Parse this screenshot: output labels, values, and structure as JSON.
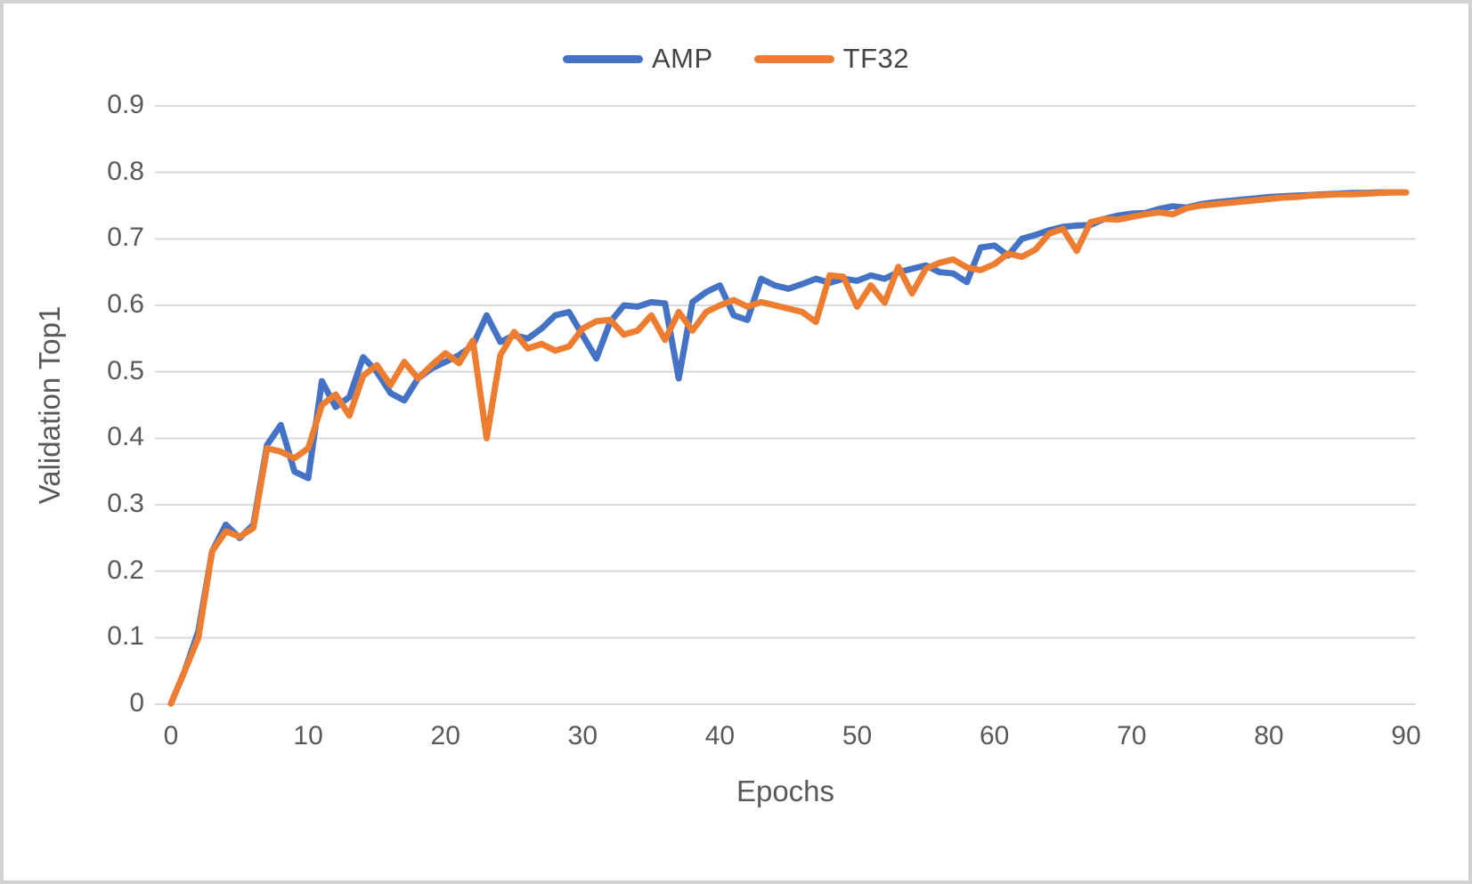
{
  "window": {
    "background": "#ffffff",
    "frame_border_color": "#d2d2d2"
  },
  "chart_data": {
    "type": "line",
    "title": "",
    "xlabel": "Epochs",
    "ylabel": "Validation Top1",
    "x": {
      "start": 0,
      "end": 90,
      "step": 1
    },
    "xlim": [
      0,
      90
    ],
    "ylim": [
      0,
      0.9
    ],
    "x_tick_labels": [
      "0",
      "10",
      "20",
      "30",
      "40",
      "50",
      "60",
      "70",
      "80",
      "90"
    ],
    "x_tick_values": [
      0,
      10,
      20,
      30,
      40,
      50,
      60,
      70,
      80,
      90
    ],
    "y_tick_labels": [
      "0",
      "0.1",
      "0.2",
      "0.3",
      "0.4",
      "0.5",
      "0.6",
      "0.7",
      "0.8",
      "0.9"
    ],
    "y_tick_values": [
      0,
      0.1,
      0.2,
      0.3,
      0.4,
      0.5,
      0.6,
      0.7,
      0.8,
      0.9
    ],
    "grid": "horizontal",
    "gridline_color": "#d9d9d9",
    "axis_line_color": "#d9d9d9",
    "axis_text_color": "#595959",
    "legend_position": "top-center",
    "series": [
      {
        "name": "AMP",
        "color": "#4472C4",
        "values": [
          0.001,
          0.05,
          0.11,
          0.23,
          0.27,
          0.25,
          0.27,
          0.39,
          0.42,
          0.35,
          0.34,
          0.486,
          0.447,
          0.462,
          0.522,
          0.5,
          0.468,
          0.457,
          0.49,
          0.505,
          0.515,
          0.525,
          0.54,
          0.585,
          0.545,
          0.555,
          0.55,
          0.565,
          0.585,
          0.59,
          0.555,
          0.52,
          0.575,
          0.6,
          0.598,
          0.605,
          0.603,
          0.49,
          0.605,
          0.62,
          0.63,
          0.585,
          0.578,
          0.64,
          0.63,
          0.625,
          0.632,
          0.64,
          0.634,
          0.64,
          0.637,
          0.645,
          0.64,
          0.65,
          0.655,
          0.66,
          0.65,
          0.648,
          0.635,
          0.687,
          0.69,
          0.675,
          0.7,
          0.706,
          0.713,
          0.718,
          0.72,
          0.721,
          0.73,
          0.735,
          0.738,
          0.739,
          0.745,
          0.749,
          0.747,
          0.752,
          0.755,
          0.757,
          0.759,
          0.761,
          0.763,
          0.764,
          0.765,
          0.766,
          0.767,
          0.768,
          0.769,
          0.769,
          0.77,
          0.77,
          0.77
        ]
      },
      {
        "name": "TF32",
        "color": "#ED7D31",
        "values": [
          0.001,
          0.05,
          0.1,
          0.23,
          0.26,
          0.252,
          0.265,
          0.385,
          0.38,
          0.37,
          0.385,
          0.45,
          0.466,
          0.434,
          0.494,
          0.51,
          0.48,
          0.515,
          0.49,
          0.51,
          0.528,
          0.513,
          0.547,
          0.4,
          0.525,
          0.56,
          0.535,
          0.542,
          0.532,
          0.538,
          0.565,
          0.576,
          0.578,
          0.556,
          0.562,
          0.585,
          0.548,
          0.59,
          0.562,
          0.59,
          0.6,
          0.608,
          0.598,
          0.605,
          0.6,
          0.595,
          0.59,
          0.575,
          0.645,
          0.643,
          0.598,
          0.63,
          0.604,
          0.658,
          0.618,
          0.655,
          0.664,
          0.669,
          0.657,
          0.653,
          0.662,
          0.678,
          0.673,
          0.684,
          0.708,
          0.715,
          0.682,
          0.725,
          0.73,
          0.729,
          0.733,
          0.737,
          0.74,
          0.737,
          0.746,
          0.75,
          0.752,
          0.754,
          0.756,
          0.758,
          0.76,
          0.762,
          0.763,
          0.765,
          0.766,
          0.767,
          0.767,
          0.768,
          0.769,
          0.77,
          0.77
        ]
      }
    ]
  }
}
